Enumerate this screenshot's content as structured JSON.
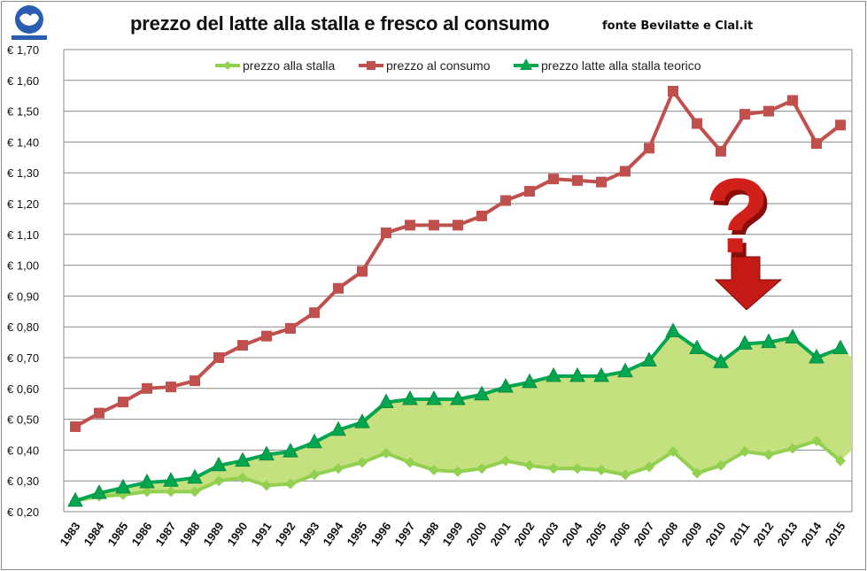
{
  "header": {
    "title": "prezzo del latte alla stalla e fresco al consumo",
    "source": "fonte Bevilatte e Clal.it",
    "logo_text": "Bevilatte"
  },
  "chart_data": {
    "type": "line",
    "title": "prezzo del latte alla stalla e fresco al consumo",
    "xlabel": "",
    "ylabel": "",
    "ylim": [
      0.2,
      1.7
    ],
    "ytick_labels": [
      "€ 0,20",
      "€ 0,30",
      "€ 0,40",
      "€ 0,50",
      "€ 0,60",
      "€ 0,70",
      "€ 0,80",
      "€ 0,90",
      "€ 1,00",
      "€ 1,10",
      "€ 1,20",
      "€ 1,30",
      "€ 1,40",
      "€ 1,50",
      "€ 1,60",
      "€ 1,70"
    ],
    "categories": [
      "1983",
      "1984",
      "1985",
      "1986",
      "1987",
      "1988",
      "1989",
      "1990",
      "1991",
      "1992",
      "1993",
      "1994",
      "1995",
      "1996",
      "1997",
      "1998",
      "1999",
      "2000",
      "2001",
      "2002",
      "2003",
      "2004",
      "2005",
      "2006",
      "2007",
      "2008",
      "2009",
      "2010",
      "2011",
      "2012",
      "2013",
      "2014",
      "2015"
    ],
    "legend_position": "top",
    "grid": true,
    "series": [
      {
        "name": "prezzo alla stalla",
        "color": "#92d050",
        "marker": "diamond",
        "values": [
          0.235,
          0.25,
          0.255,
          0.265,
          0.265,
          0.265,
          0.3,
          0.31,
          0.285,
          0.29,
          0.32,
          0.34,
          0.36,
          0.39,
          0.36,
          0.335,
          0.33,
          0.34,
          0.365,
          0.35,
          0.34,
          0.34,
          0.335,
          0.32,
          0.345,
          0.395,
          0.325,
          0.35,
          0.395,
          0.385,
          0.405,
          0.43,
          0.365
        ]
      },
      {
        "name": "prezzo al consumo",
        "color": "#c0504d",
        "marker": "square",
        "values": [
          0.476,
          0.52,
          0.556,
          0.6,
          0.605,
          0.625,
          0.7,
          0.74,
          0.77,
          0.795,
          0.846,
          0.925,
          0.98,
          1.105,
          1.13,
          1.13,
          1.13,
          1.16,
          1.21,
          1.24,
          1.28,
          1.275,
          1.27,
          1.305,
          1.38,
          1.565,
          1.46,
          1.37,
          1.49,
          1.5,
          1.535,
          1.395,
          1.455
        ]
      },
      {
        "name": "prezzo latte alla stalla teorico",
        "color": "#00a650",
        "marker": "triangle",
        "values": [
          0.235,
          0.26,
          0.278,
          0.295,
          0.3,
          0.31,
          0.35,
          0.365,
          0.385,
          0.395,
          0.425,
          0.465,
          0.49,
          0.555,
          0.565,
          0.565,
          0.565,
          0.58,
          0.605,
          0.62,
          0.64,
          0.64,
          0.64,
          0.655,
          0.69,
          0.785,
          0.73,
          0.685,
          0.745,
          0.75,
          0.765,
          0.7,
          0.73
        ]
      }
    ],
    "area_fill": {
      "between": [
        "prezzo alla stalla",
        "prezzo latte alla stalla teorico"
      ],
      "color": "#c5e07f"
    },
    "annotation": {
      "type": "question-mark-arrow",
      "color": "#d0201a"
    }
  }
}
